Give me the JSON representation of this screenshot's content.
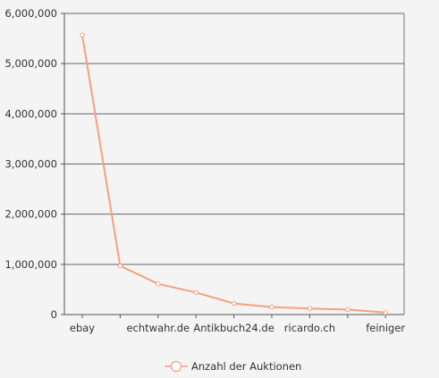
{
  "chart_data": {
    "type": "line",
    "categories": [
      "ebay",
      "",
      "echtwahr.de",
      "",
      "Antikbuch24.de",
      "",
      "ricardo.ch",
      "",
      "feiniger"
    ],
    "series": [
      {
        "name": "Anzahl der Auktionen",
        "color": "#f4a07f",
        "values": [
          5570000,
          970000,
          610000,
          440000,
          220000,
          150000,
          120000,
          100000,
          40000
        ]
      }
    ],
    "ylim": [
      0,
      6000000
    ],
    "yticks": [
      0,
      1000000,
      2000000,
      3000000,
      4000000,
      5000000,
      6000000
    ],
    "grid": true,
    "legend_position": "bottom"
  }
}
